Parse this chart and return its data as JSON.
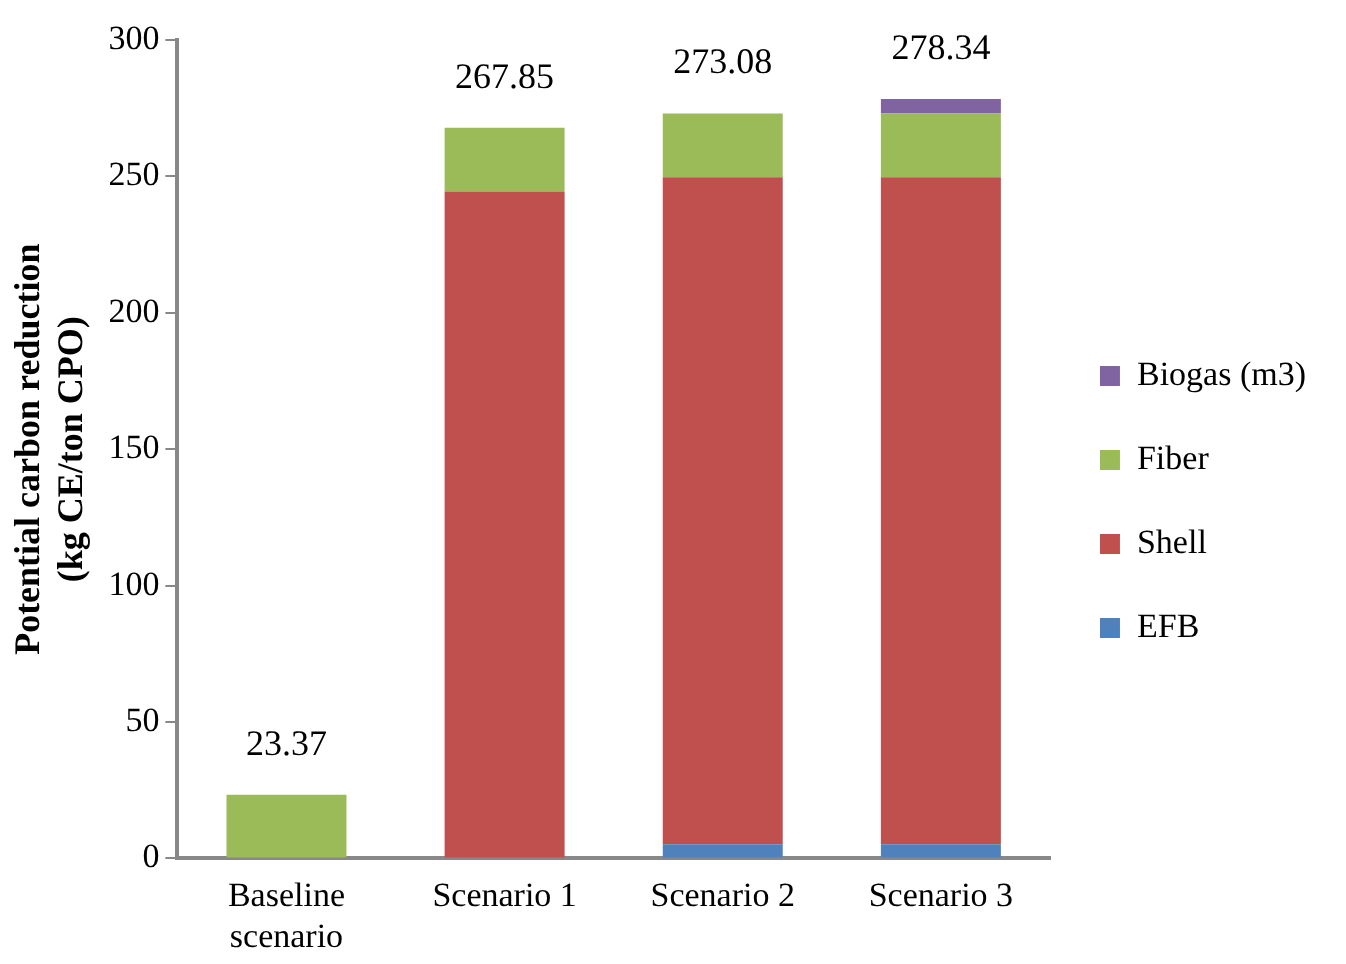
{
  "chart_data": {
    "type": "bar",
    "stacked": true,
    "ylabel": "Potential carbon reduction\n(kg CE/ton CPO)",
    "categories": [
      "Baseline\nscenario",
      "Scenario 1",
      "Scenario 2",
      "Scenario 3"
    ],
    "series": [
      {
        "name": "EFB",
        "color": "#4f81bd",
        "values": [
          0,
          0,
          5.23,
          5.23
        ]
      },
      {
        "name": "Shell",
        "color": "#c0504d",
        "values": [
          0,
          244.48,
          244.48,
          244.48
        ]
      },
      {
        "name": "Fiber",
        "color": "#9bbb59",
        "values": [
          23.37,
          23.37,
          23.37,
          23.37
        ]
      },
      {
        "name": "Biogas (m3)",
        "color": "#8064a2",
        "values": [
          0,
          0,
          0,
          5.26
        ]
      }
    ],
    "ylim": [
      0,
      300
    ],
    "yticks": [
      0,
      50,
      100,
      150,
      200,
      250,
      300
    ],
    "grid": false,
    "legend": "right",
    "totals": [
      "23.37",
      "267.85",
      "273.08",
      "278.34"
    ]
  }
}
